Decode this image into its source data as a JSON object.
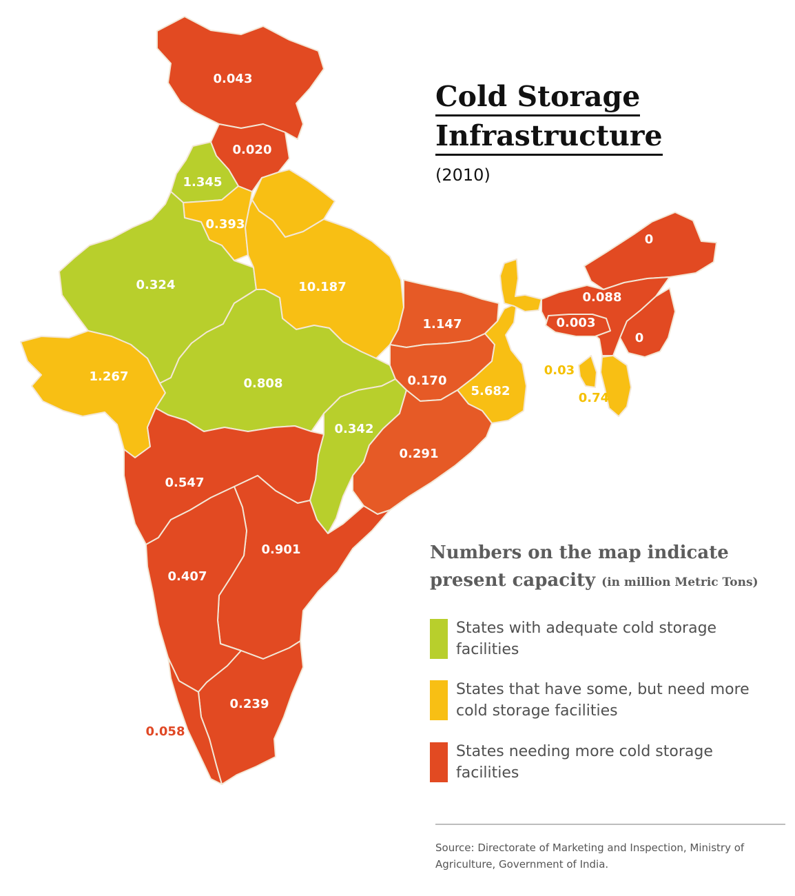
{
  "title": {
    "line1": "Cold Storage",
    "line2": "Infrastructure"
  },
  "year": "(2010)",
  "note": {
    "main_line1": "Numbers on the map indicate",
    "main_line2": "present capacity",
    "unit": "(in million Metric Tons)"
  },
  "colors": {
    "adequate": "#b8cf2c",
    "some": "#f8bf14",
    "needing": "#e24a22",
    "needing_mid": "#e65a26"
  },
  "legend": [
    {
      "category": "adequate",
      "text": "States with adequate cold storage facilities"
    },
    {
      "category": "some",
      "text": "States that have some, but need more cold storage facilities"
    },
    {
      "category": "needing",
      "text": "States needing more cold storage facilities"
    }
  ],
  "regions": [
    {
      "id": "jammu-kashmir",
      "value": "0.043",
      "category": "needing"
    },
    {
      "id": "himachal-pradesh",
      "value": "0.020",
      "category": "needing"
    },
    {
      "id": "punjab",
      "value": "1.345",
      "category": "adequate"
    },
    {
      "id": "haryana",
      "value": "0.393",
      "category": "some"
    },
    {
      "id": "uttarakhand",
      "value": "",
      "category": "some"
    },
    {
      "id": "rajasthan",
      "value": "0.324",
      "category": "adequate"
    },
    {
      "id": "uttar-pradesh",
      "value": "10.187",
      "category": "some"
    },
    {
      "id": "gujarat",
      "value": "1.267",
      "category": "some"
    },
    {
      "id": "madhya-pradesh",
      "value": "0.808",
      "category": "adequate"
    },
    {
      "id": "bihar",
      "value": "1.147",
      "category": "needing"
    },
    {
      "id": "jharkhand",
      "value": "0.170",
      "category": "needing"
    },
    {
      "id": "west-bengal",
      "value": "5.682",
      "category": "some"
    },
    {
      "id": "chhattisgarh",
      "value": "0.342",
      "category": "adequate"
    },
    {
      "id": "odisha",
      "value": "0.291",
      "category": "needing"
    },
    {
      "id": "maharashtra",
      "value": "0.547",
      "category": "needing"
    },
    {
      "id": "andhra-pradesh",
      "value": "0.901",
      "category": "needing"
    },
    {
      "id": "karnataka",
      "value": "0.407",
      "category": "needing"
    },
    {
      "id": "tamil-nadu",
      "value": "0.239",
      "category": "needing"
    },
    {
      "id": "kerala",
      "value": "0.058",
      "category": "needing"
    },
    {
      "id": "sikkim",
      "value": "",
      "category": "some"
    },
    {
      "id": "arunachal-pradesh",
      "value": "0",
      "category": "needing"
    },
    {
      "id": "assam",
      "value": "0.088",
      "category": "needing"
    },
    {
      "id": "meghalaya",
      "value": "0.003",
      "category": "needing"
    },
    {
      "id": "nagaland-manipur",
      "value": "0",
      "category": "needing"
    },
    {
      "id": "mizoram",
      "value": "0.74",
      "category": "some"
    },
    {
      "id": "tripura",
      "value": "0.03",
      "category": "some"
    }
  ],
  "source": "Source: Directorate of Marketing and Inspection, Ministry of Agriculture, Government of India."
}
